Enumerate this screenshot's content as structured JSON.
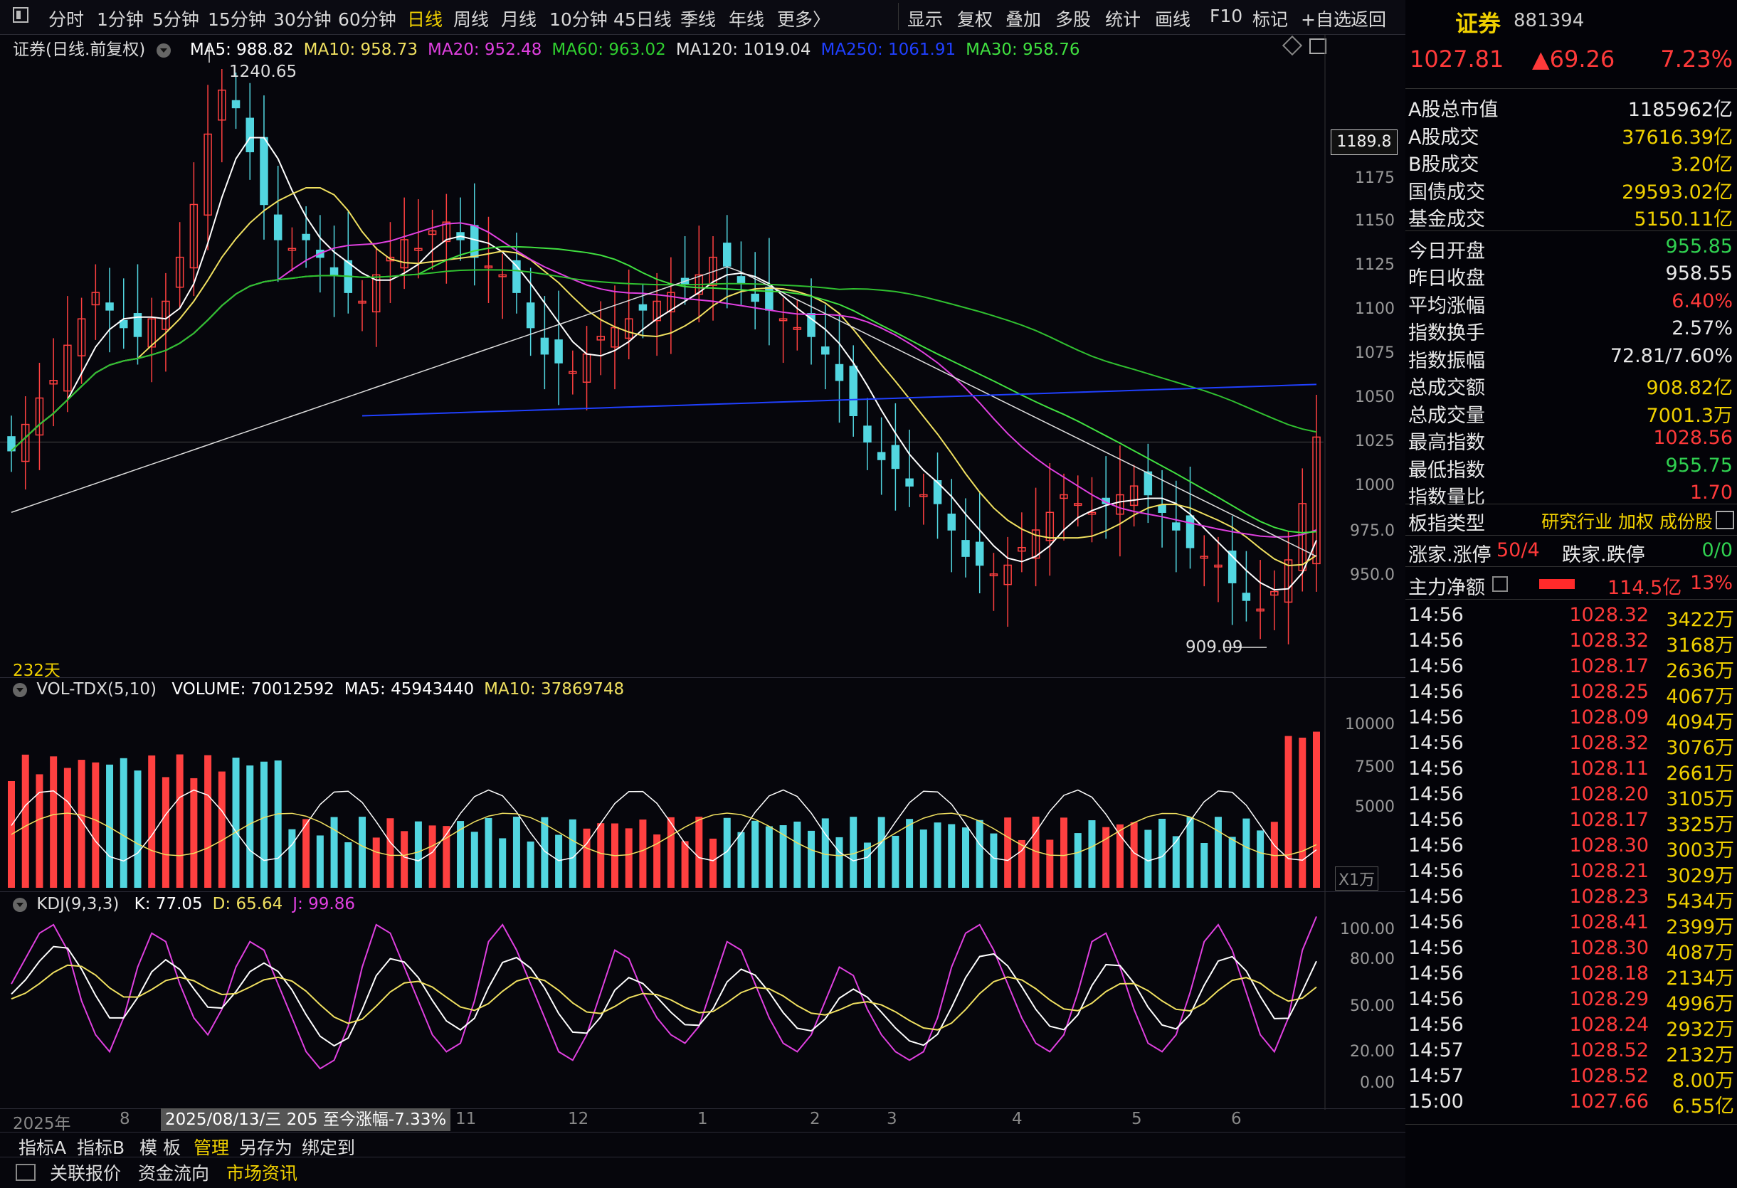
{
  "toolbar": {
    "periods": [
      "分时",
      "1分钟",
      "5分钟",
      "15分钟",
      "30分钟",
      "60分钟",
      "日线",
      "周线",
      "月线",
      "10分钟",
      "45日线",
      "季线",
      "年线",
      "更多〉"
    ],
    "selected_period": "日线",
    "tools": [
      "显示",
      "复权",
      "叠加",
      "多股",
      "统计",
      "画线",
      "F10",
      "标记",
      "+自选",
      "返回"
    ]
  },
  "main_chart": {
    "title": "证券(日线.前复权)",
    "ma": [
      {
        "label": "MA5: 988.82",
        "color": "#ffffff"
      },
      {
        "label": "MA10: 958.73",
        "color": "#f0e060"
      },
      {
        "label": "MA20: 952.48",
        "color": "#e040e0"
      },
      {
        "label": "MA60: 963.02",
        "color": "#30d030"
      },
      {
        "label": "MA120: 1019.04",
        "color": "#e0e0e0"
      },
      {
        "label": "MA250: 1061.91",
        "color": "#2040ff"
      },
      {
        "label": "MA30: 958.76",
        "color": "#40e040"
      }
    ],
    "high_mark": "1240.65",
    "low_mark": "909.09",
    "current_box": "1189.8",
    "y_ticks": [
      "1175",
      "1150",
      "1125",
      "1100",
      "1075",
      "1050",
      "1025",
      "1000",
      "975.0",
      "950.0"
    ],
    "days_label": "232天"
  },
  "volume_chart": {
    "title": "VOL-TDX(5,10)",
    "items": [
      {
        "label": "VOLUME: 70012592",
        "color": "#ffffff"
      },
      {
        "label": "MA5: 45943440",
        "color": "#ffffff"
      },
      {
        "label": "MA10: 37869748",
        "color": "#f0e060"
      }
    ],
    "y_ticks": [
      "10000",
      "7500",
      "5000"
    ],
    "unit": "X1万"
  },
  "kdj_chart": {
    "title": "KDJ(9,3,3)",
    "items": [
      {
        "label": "K: 77.05",
        "color": "#ffffff"
      },
      {
        "label": "D: 65.64",
        "color": "#f0e060"
      },
      {
        "label": "J: 99.86",
        "color": "#e040e0"
      }
    ],
    "y_ticks": [
      "100.00",
      "80.00",
      "50.00",
      "20.00",
      "0.00"
    ]
  },
  "x_axis": {
    "labels": [
      "2025年",
      "8",
      "11",
      "12",
      "1",
      "2",
      "3",
      "4",
      "5",
      "6"
    ],
    "cursor_info": "2025/08/13/三 205 至今涨幅-7.33%"
  },
  "bottom_tabs": [
    "指标A",
    "指标B",
    "模 板",
    "管理",
    "另存为",
    "绑定到"
  ],
  "bottom_links": [
    "关联报价",
    "资金流向",
    "市场资讯"
  ],
  "quote": {
    "name": "证券",
    "code": "881394",
    "price": "1027.81",
    "change": "▲69.26",
    "pct": "7.23%",
    "stats": [
      {
        "k": "A股总市值",
        "v": "1185962亿",
        "c": "#e8e8e8"
      },
      {
        "k": "A股成交",
        "v": "37616.39亿",
        "c": "#f0d000"
      },
      {
        "k": "B股成交",
        "v": "3.20亿",
        "c": "#f0d000"
      },
      {
        "k": "国债成交",
        "v": "29593.02亿",
        "c": "#f0d000"
      },
      {
        "k": "基金成交",
        "v": "5150.11亿",
        "c": "#f0d000"
      },
      {
        "k": "今日开盘",
        "v": "955.85",
        "c": "#30d050"
      },
      {
        "k": "昨日收盘",
        "v": "958.55",
        "c": "#e8e8e8"
      },
      {
        "k": "平均涨幅",
        "v": "6.40%",
        "c": "#ff3a3a"
      },
      {
        "k": "指数换手",
        "v": "2.57%",
        "c": "#e8e8e8"
      },
      {
        "k": "指数振幅",
        "v": "72.81/7.60%",
        "c": "#e8e8e8"
      },
      {
        "k": "总成交额",
        "v": "908.82亿",
        "c": "#f0d000"
      },
      {
        "k": "总成交量",
        "v": "7001.3万",
        "c": "#f0d000"
      },
      {
        "k": "最高指数",
        "v": "1028.56",
        "c": "#ff3a3a"
      },
      {
        "k": "最低指数",
        "v": "955.75",
        "c": "#30d050"
      },
      {
        "k": "指数量比",
        "v": "1.70",
        "c": "#ff3a3a"
      }
    ],
    "board_type_label": "板指类型",
    "board_type_value": "研究行业 加权 成份股",
    "limit_label": "涨家.涨停",
    "limit_value": "50/4",
    "limit_down_label": "跌家.跌停",
    "limit_down_value": "0/0",
    "main_net_label": "主力净额",
    "main_net_value": "114.5亿",
    "main_net_pct": "13%"
  },
  "ticks": [
    {
      "t": "14:56",
      "p": "1028.32",
      "q": "3422万"
    },
    {
      "t": "14:56",
      "p": "1028.32",
      "q": "3168万"
    },
    {
      "t": "14:56",
      "p": "1028.17",
      "q": "2636万"
    },
    {
      "t": "14:56",
      "p": "1028.25",
      "q": "4067万"
    },
    {
      "t": "14:56",
      "p": "1028.09",
      "q": "4094万"
    },
    {
      "t": "14:56",
      "p": "1028.32",
      "q": "3076万"
    },
    {
      "t": "14:56",
      "p": "1028.11",
      "q": "2661万"
    },
    {
      "t": "14:56",
      "p": "1028.20",
      "q": "3105万"
    },
    {
      "t": "14:56",
      "p": "1028.17",
      "q": "3325万"
    },
    {
      "t": "14:56",
      "p": "1028.30",
      "q": "3003万"
    },
    {
      "t": "14:56",
      "p": "1028.21",
      "q": "3029万"
    },
    {
      "t": "14:56",
      "p": "1028.23",
      "q": "5434万"
    },
    {
      "t": "14:56",
      "p": "1028.41",
      "q": "2399万"
    },
    {
      "t": "14:56",
      "p": "1028.30",
      "q": "4087万"
    },
    {
      "t": "14:56",
      "p": "1028.18",
      "q": "2134万"
    },
    {
      "t": "14:56",
      "p": "1028.29",
      "q": "4996万"
    },
    {
      "t": "14:56",
      "p": "1028.24",
      "q": "2932万"
    },
    {
      "t": "14:57",
      "p": "1028.52",
      "q": "2132万"
    },
    {
      "t": "14:57",
      "p": "1028.52",
      "q": "8.00万"
    },
    {
      "t": "15:00",
      "p": "1027.66",
      "q": "6.55亿"
    }
  ],
  "chart_data": {
    "type": "candlestick",
    "price_range": [
      909.09,
      1240.65
    ],
    "close_points": [
      1020,
      1035,
      1050,
      1060,
      1080,
      1095,
      1110,
      1100,
      1090,
      1085,
      1095,
      1105,
      1130,
      1160,
      1200,
      1225,
      1215,
      1190,
      1160,
      1140,
      1135,
      1140,
      1130,
      1120,
      1110,
      1105,
      1120,
      1130,
      1140,
      1135,
      1145,
      1150,
      1140,
      1130,
      1125,
      1120,
      1110,
      1090,
      1075,
      1070,
      1065,
      1075,
      1085,
      1090,
      1095,
      1100,
      1105,
      1110,
      1115,
      1120,
      1130,
      1125,
      1115,
      1105,
      1100,
      1095,
      1090,
      1085,
      1075,
      1060,
      1040,
      1025,
      1015,
      1010,
      1000,
      995,
      990,
      975,
      960,
      955,
      950,
      955,
      965,
      975,
      985,
      995,
      990,
      985,
      990,
      995,
      1000,
      995,
      985,
      975,
      965,
      960,
      955,
      945,
      935,
      930,
      940,
      958,
      990,
      1027.81
    ],
    "kdj_j": [
      60,
      75,
      90,
      95,
      80,
      50,
      30,
      20,
      40,
      70,
      90,
      85,
      60,
      40,
      30,
      45,
      70,
      85,
      80,
      60,
      40,
      20,
      10,
      15,
      35,
      70,
      95,
      90,
      70,
      50,
      30,
      20,
      25,
      50,
      85,
      95,
      80,
      60,
      40,
      20,
      15,
      30,
      55,
      80,
      75,
      55,
      40,
      30,
      25,
      35,
      60,
      85,
      80,
      60,
      40,
      25,
      20,
      30,
      50,
      70,
      65,
      45,
      30,
      20,
      15,
      20,
      40,
      70,
      90,
      95,
      80,
      60,
      40,
      25,
      20,
      30,
      55,
      85,
      90,
      70,
      45,
      25,
      20,
      30,
      55,
      85,
      95,
      80,
      55,
      30,
      20,
      40,
      80,
      99.86
    ]
  }
}
